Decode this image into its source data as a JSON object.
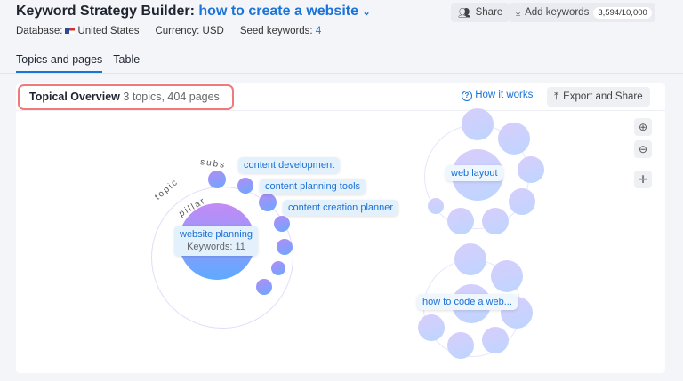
{
  "header": {
    "title_prefix": "Keyword Strategy Builder:",
    "title_keyword": "how to create a website",
    "database_label": "Database:",
    "database_value": "United States",
    "currency": "Currency: USD",
    "seed_label": "Seed keywords:",
    "seed_value": "4",
    "share_label": "Share",
    "add_keywords_label": "Add keywords",
    "keyword_count": "3,594/10,000"
  },
  "tabs": [
    {
      "label": "Topics and pages",
      "active": true
    },
    {
      "label": "Table",
      "active": false
    }
  ],
  "overview": {
    "title": "Topical Overview",
    "summary": "3 topics, 404 pages",
    "how_it_works": "How it works",
    "export_label": "Export and Share"
  },
  "graph": {
    "arc_labels": {
      "topic": "topic",
      "subs": "subs",
      "pillar": "pillar"
    },
    "pillar": {
      "label": "website planning",
      "keywords": "Keywords: 11"
    },
    "subtopics": [
      "content development",
      "content planning tools",
      "content creation planner"
    ],
    "clusters": [
      "web layout",
      "how to code a web..."
    ]
  },
  "colors": {
    "accent": "#1a73d9",
    "highlight": "#f07a7a"
  }
}
